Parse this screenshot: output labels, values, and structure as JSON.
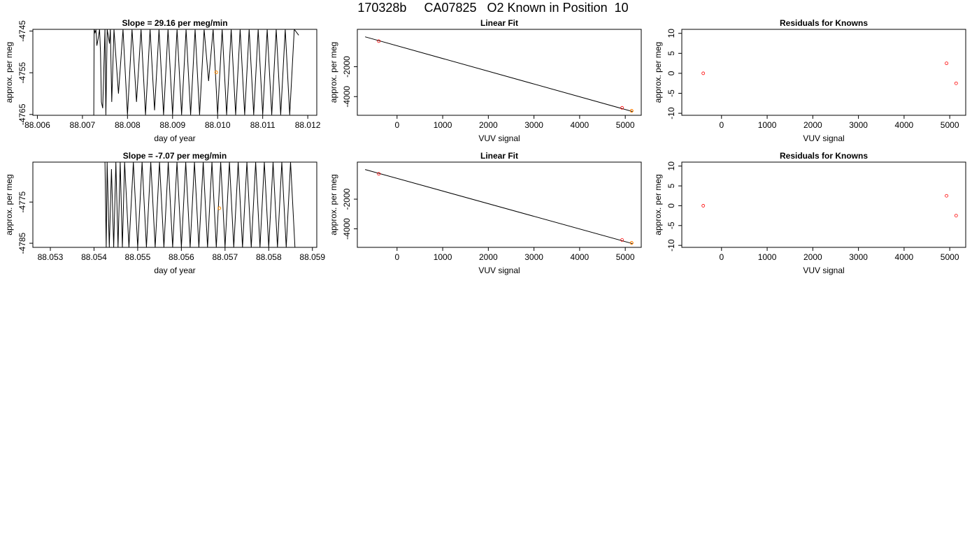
{
  "page_title": "170328b     CA07825   O2 Known in Position  10",
  "colors": {
    "axis": "#000000",
    "trace": "#000000",
    "marker": "#ff8c00",
    "residual": "#ff0000"
  },
  "chart_data": [
    {
      "type": "line",
      "title": "Slope =  29.16  per meg/min",
      "xlabel": "day of year",
      "ylabel": "approx. per meg",
      "xlim": [
        88.0059,
        88.0122
      ],
      "ylim": [
        -4765.2,
        -4744.6
      ],
      "xticks": [
        "88.006",
        "88.007",
        "88.008",
        "88.009",
        "88.010",
        "88.011",
        "88.012"
      ],
      "yticks": [
        "-4745",
        "-4755",
        "-4765"
      ],
      "series": [
        {
          "x": [
            88.00725,
            88.00726,
            88.00728,
            88.0073,
            88.00732,
            88.00735,
            88.00738,
            88.0074,
            88.00742,
            88.00745,
            88.0075,
            88.00752,
            88.00755,
            88.0076,
            88.00762,
            88.00765,
            88.0077,
            88.0078,
            88.0079,
            88.008,
            88.0081,
            88.0082,
            88.0083,
            88.0084,
            88.0085,
            88.0086,
            88.0087,
            88.0088,
            88.0089,
            88.009,
            88.0091,
            88.0092,
            88.0093,
            88.0094,
            88.0095,
            88.0096,
            88.0097,
            88.0098,
            88.0099,
            88.01,
            88.0101,
            88.0102,
            88.0103,
            88.0104,
            88.0105,
            88.0106,
            88.0107,
            88.0108,
            88.0109,
            88.011,
            88.0111,
            88.0112,
            88.0113,
            88.0114,
            88.0115,
            88.0116,
            88.0117,
            88.0118
          ],
          "y": [
            -4770,
            -4744.6,
            -4745.4,
            -4744.7,
            -4748.5,
            -4746.8,
            -4744.6,
            -4750,
            -4762,
            -4763.5,
            -4744.6,
            -4765.1,
            -4744.6,
            -4748,
            -4744.6,
            -4762,
            -4744.6,
            -4760,
            -4744.6,
            -4765.1,
            -4744.6,
            -4762,
            -4744.6,
            -4765.1,
            -4744.6,
            -4764,
            -4744.6,
            -4765.1,
            -4744.6,
            -4765.1,
            -4744.6,
            -4765.1,
            -4744.6,
            -4765.1,
            -4744.6,
            -4765.1,
            -4744.6,
            -4757,
            -4744.6,
            -4765.1,
            -4744.6,
            -4765.1,
            -4744.6,
            -4765.1,
            -4744.6,
            -4765.1,
            -4744.6,
            -4765.1,
            -4744.6,
            -4765.1,
            -4744.6,
            -4765.1,
            -4744.6,
            -4765.1,
            -4744.6,
            -4765.1,
            -4744.6,
            -4746
          ]
        }
      ],
      "markers": [
        {
          "x": 88.00997,
          "y": -4754.9
        }
      ]
    },
    {
      "type": "scatter",
      "title": "Linear Fit",
      "xlabel": "VUV signal",
      "ylabel": "approx. per meg",
      "xlim": [
        -870,
        5350
      ],
      "ylim": [
        -5250,
        500
      ],
      "xticks": [
        0,
        1000,
        2000,
        3000,
        4000,
        5000
      ],
      "yticks": [
        -2000,
        -4000
      ],
      "line": [
        [
          -700,
          0
        ],
        [
          5160,
          -5000
        ]
      ],
      "points": [
        {
          "x": -400,
          "y": -290
        },
        {
          "x": 4930,
          "y": -4750
        },
        {
          "x": 5140,
          "y": -4950
        }
      ],
      "markers": [
        {
          "x": 5140,
          "y": -4950
        }
      ]
    },
    {
      "type": "scatter",
      "title": "Residuals for Knowns",
      "xlabel": "VUV signal",
      "ylabel": "approx. per meg",
      "xlim": [
        -870,
        5350
      ],
      "ylim": [
        -10.5,
        11
      ],
      "xticks": [
        0,
        1000,
        2000,
        3000,
        4000,
        5000
      ],
      "yticks": [
        10,
        5,
        0,
        -5,
        -10
      ],
      "points": [
        {
          "x": -400,
          "y": 0
        },
        {
          "x": 4930,
          "y": 2.5
        },
        {
          "x": 5140,
          "y": -2.5
        }
      ]
    },
    {
      "type": "line",
      "title": "Slope =  -7.07  per meg/min",
      "xlabel": "day of year",
      "ylabel": "approx. per meg",
      "xlim": [
        88.0526,
        88.0591
      ],
      "ylim": [
        -4786,
        -4765.3
      ],
      "xticks": [
        "88.053",
        "88.054",
        "88.055",
        "88.056",
        "88.057",
        "88.058",
        "88.059"
      ],
      "yticks": [
        "-4775",
        "-4785"
      ],
      "series": [
        {
          "x": [
            88.05425,
            88.05428,
            88.0543,
            88.05435,
            88.0544,
            88.05445,
            88.0545,
            88.05455,
            88.0546,
            88.05465,
            88.0547,
            88.0548,
            88.0549,
            88.055,
            88.0551,
            88.0552,
            88.0553,
            88.0554,
            88.0555,
            88.0556,
            88.0557,
            88.0558,
            88.0559,
            88.056,
            88.0561,
            88.0562,
            88.0563,
            88.0564,
            88.0565,
            88.0566,
            88.0567,
            88.0568,
            88.0569,
            88.057,
            88.0571,
            88.0572,
            88.0573,
            88.0574,
            88.0575,
            88.0576,
            88.0577,
            88.0578,
            88.0579,
            88.058,
            88.0581,
            88.0582,
            88.0583,
            88.0584,
            88.0585,
            88.0586
          ],
          "y": [
            -4765.3,
            -4786,
            -4765.3,
            -4786,
            -4767,
            -4786,
            -4765.3,
            -4786,
            -4765.3,
            -4786,
            -4765.3,
            -4786,
            -4765.3,
            -4786,
            -4765.3,
            -4786,
            -4765.3,
            -4786,
            -4765.3,
            -4786,
            -4765.3,
            -4786,
            -4765.3,
            -4786,
            -4765.3,
            -4786,
            -4765.3,
            -4786,
            -4765.3,
            -4786,
            -4765.3,
            -4786,
            -4765.3,
            -4786,
            -4765.3,
            -4786,
            -4765.3,
            -4786,
            -4765.3,
            -4786,
            -4765.3,
            -4786,
            -4765.3,
            -4786,
            -4765.3,
            -4786,
            -4765.3,
            -4786,
            -4765.3,
            -4786
          ]
        }
      ],
      "markers": [
        {
          "x": 88.05687,
          "y": -4776.5
        }
      ]
    },
    {
      "type": "scatter",
      "title": "Linear Fit",
      "xlabel": "VUV signal",
      "ylabel": "approx. per meg",
      "xlim": [
        -870,
        5350
      ],
      "ylim": [
        -5250,
        500
      ],
      "xticks": [
        0,
        1000,
        2000,
        3000,
        4000,
        5000
      ],
      "yticks": [
        -2000,
        -4000
      ],
      "line": [
        [
          -700,
          0
        ],
        [
          5160,
          -5000
        ]
      ],
      "points": [
        {
          "x": -400,
          "y": -290
        },
        {
          "x": 4930,
          "y": -4750
        },
        {
          "x": 5140,
          "y": -4950
        }
      ],
      "markers": [
        {
          "x": 5140,
          "y": -4950
        }
      ]
    },
    {
      "type": "scatter",
      "title": "Residuals for Knowns",
      "xlabel": "VUV signal",
      "ylabel": "approx. per meg",
      "xlim": [
        -870,
        5350
      ],
      "ylim": [
        -10.5,
        11
      ],
      "xticks": [
        0,
        1000,
        2000,
        3000,
        4000,
        5000
      ],
      "yticks": [
        10,
        5,
        0,
        -5,
        -10
      ],
      "points": [
        {
          "x": -400,
          "y": 0
        },
        {
          "x": 4930,
          "y": 2.5
        },
        {
          "x": 5140,
          "y": -2.5
        }
      ]
    }
  ]
}
